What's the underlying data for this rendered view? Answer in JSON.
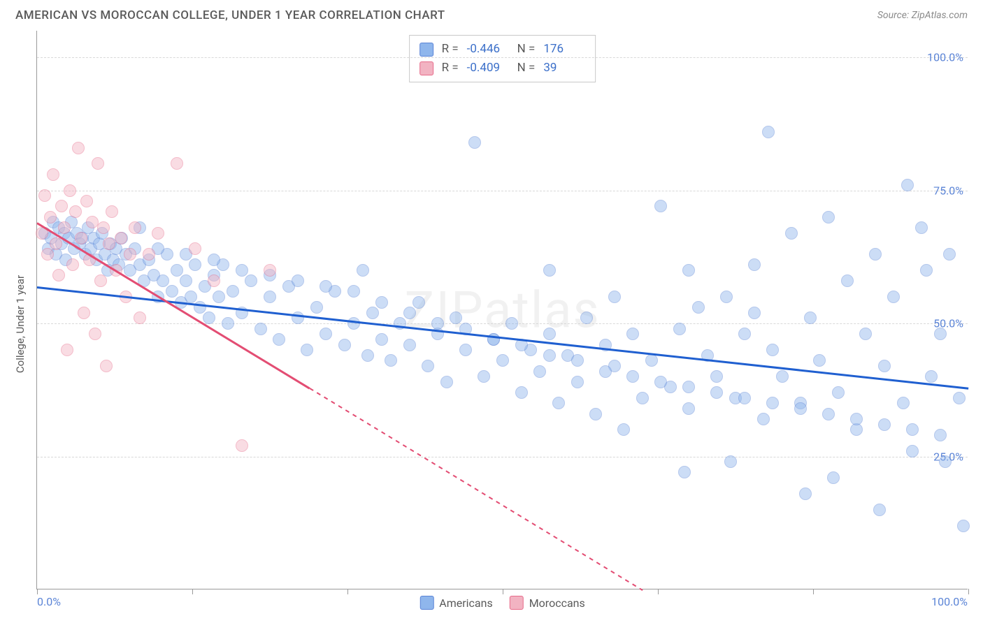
{
  "title": "AMERICAN VS MOROCCAN COLLEGE, UNDER 1 YEAR CORRELATION CHART",
  "source": "Source: ZipAtlas.com",
  "ylabel": "College, Under 1 year",
  "watermark": "ZIPatlas",
  "chart": {
    "type": "scatter",
    "background_color": "#ffffff",
    "grid_color": "#d8d8d8",
    "border_color": "#9a9a9a",
    "xlim": [
      0,
      100
    ],
    "ylim": [
      0,
      105
    ],
    "yticks": [
      25,
      50,
      75,
      100
    ],
    "ytick_labels": [
      "25.0%",
      "50.0%",
      "75.0%",
      "100.0%"
    ],
    "xticks": [
      0,
      16.67,
      33.33,
      50,
      66.67,
      83.33,
      100
    ],
    "x_start_label": "0.0%",
    "x_end_label": "100.0%",
    "marker_size": 18,
    "marker_opacity": 0.45,
    "axis_label_color": "#5b84d6",
    "axis_label_fontsize": 16
  },
  "series": [
    {
      "name": "Americans",
      "fill_color": "#8fb6ec",
      "stroke_color": "#5b84d6",
      "trend_color": "#1f5fd0",
      "R": "-0.446",
      "N": "176",
      "trend": {
        "x1": 0,
        "y1": 57,
        "x2": 100,
        "y2": 38
      },
      "points": [
        [
          0.8,
          67
        ],
        [
          1.2,
          64
        ],
        [
          1.5,
          66
        ],
        [
          1.7,
          69
        ],
        [
          2.0,
          63
        ],
        [
          2.3,
          68
        ],
        [
          2.6,
          65
        ],
        [
          2.9,
          67
        ],
        [
          3.1,
          62
        ],
        [
          3.4,
          66
        ],
        [
          3.7,
          69
        ],
        [
          4.0,
          64
        ],
        [
          4.3,
          67
        ],
        [
          4.6,
          65
        ],
        [
          4.9,
          66
        ],
        [
          5.2,
          63
        ],
        [
          5.5,
          68
        ],
        [
          5.8,
          64
        ],
        [
          6.1,
          66
        ],
        [
          6.4,
          62
        ],
        [
          6.7,
          65
        ],
        [
          7.0,
          67
        ],
        [
          7.3,
          63
        ],
        [
          7.6,
          60
        ],
        [
          7.9,
          65
        ],
        [
          8.2,
          62
        ],
        [
          8.5,
          64
        ],
        [
          8.8,
          61
        ],
        [
          9.1,
          66
        ],
        [
          9.5,
          63
        ],
        [
          10,
          60
        ],
        [
          10.5,
          64
        ],
        [
          11,
          61
        ],
        [
          11.5,
          58
        ],
        [
          12,
          62
        ],
        [
          12.5,
          59
        ],
        [
          13,
          55
        ],
        [
          13.5,
          58
        ],
        [
          14,
          63
        ],
        [
          14.5,
          56
        ],
        [
          15,
          60
        ],
        [
          15.5,
          54
        ],
        [
          16,
          58
        ],
        [
          16.5,
          55
        ],
        [
          17,
          61
        ],
        [
          17.5,
          53
        ],
        [
          18,
          57
        ],
        [
          18.5,
          51
        ],
        [
          19,
          59
        ],
        [
          19.5,
          55
        ],
        [
          20,
          61
        ],
        [
          20.5,
          50
        ],
        [
          21,
          56
        ],
        [
          22,
          52
        ],
        [
          23,
          58
        ],
        [
          24,
          49
        ],
        [
          25,
          55
        ],
        [
          26,
          47
        ],
        [
          27,
          57
        ],
        [
          28,
          51
        ],
        [
          29,
          45
        ],
        [
          30,
          53
        ],
        [
          31,
          48
        ],
        [
          32,
          56
        ],
        [
          33,
          46
        ],
        [
          34,
          50
        ],
        [
          35,
          60
        ],
        [
          35.5,
          44
        ],
        [
          36,
          52
        ],
        [
          37,
          47
        ],
        [
          38,
          43
        ],
        [
          39,
          50
        ],
        [
          40,
          46
        ],
        [
          41,
          54
        ],
        [
          42,
          42
        ],
        [
          43,
          48
        ],
        [
          44,
          39
        ],
        [
          45,
          51
        ],
        [
          46,
          45
        ],
        [
          47,
          84
        ],
        [
          48,
          40
        ],
        [
          49,
          47
        ],
        [
          50,
          43
        ],
        [
          51,
          50
        ],
        [
          52,
          37
        ],
        [
          53,
          45
        ],
        [
          54,
          41
        ],
        [
          55,
          48
        ],
        [
          56,
          35
        ],
        [
          57,
          44
        ],
        [
          58,
          39
        ],
        [
          59,
          51
        ],
        [
          60,
          33
        ],
        [
          61,
          46
        ],
        [
          62,
          42
        ],
        [
          63,
          30
        ],
        [
          64,
          48
        ],
        [
          65,
          36
        ],
        [
          66,
          43
        ],
        [
          67,
          72
        ],
        [
          68,
          38
        ],
        [
          69,
          49
        ],
        [
          69.5,
          22
        ],
        [
          70,
          34
        ],
        [
          71,
          53
        ],
        [
          72,
          44
        ],
        [
          73,
          40
        ],
        [
          74,
          55
        ],
        [
          74.5,
          24
        ],
        [
          75,
          36
        ],
        [
          76,
          48
        ],
        [
          77,
          61
        ],
        [
          78,
          32
        ],
        [
          78.5,
          86
        ],
        [
          79,
          45
        ],
        [
          80,
          40
        ],
        [
          81,
          67
        ],
        [
          82,
          35
        ],
        [
          82.5,
          18
        ],
        [
          83,
          51
        ],
        [
          84,
          43
        ],
        [
          85,
          70
        ],
        [
          85.5,
          21
        ],
        [
          86,
          37
        ],
        [
          87,
          58
        ],
        [
          88,
          30
        ],
        [
          89,
          48
        ],
        [
          90,
          63
        ],
        [
          90.5,
          15
        ],
        [
          91,
          42
        ],
        [
          92,
          55
        ],
        [
          93,
          35
        ],
        [
          93.5,
          76
        ],
        [
          94,
          26
        ],
        [
          95,
          68
        ],
        [
          95.5,
          60
        ],
        [
          96,
          40
        ],
        [
          97,
          48
        ],
        [
          97.5,
          24
        ],
        [
          98,
          63
        ],
        [
          99,
          36
        ],
        [
          99.5,
          12
        ],
        [
          11,
          68
        ],
        [
          13,
          64
        ],
        [
          16,
          63
        ],
        [
          19,
          62
        ],
        [
          22,
          60
        ],
        [
          25,
          59
        ],
        [
          28,
          58
        ],
        [
          31,
          57
        ],
        [
          34,
          56
        ],
        [
          37,
          54
        ],
        [
          40,
          52
        ],
        [
          43,
          50
        ],
        [
          46,
          49
        ],
        [
          49,
          47
        ],
        [
          52,
          46
        ],
        [
          55,
          44
        ],
        [
          58,
          43
        ],
        [
          61,
          41
        ],
        [
          64,
          40
        ],
        [
          67,
          39
        ],
        [
          70,
          38
        ],
        [
          73,
          37
        ],
        [
          76,
          36
        ],
        [
          79,
          35
        ],
        [
          82,
          34
        ],
        [
          85,
          33
        ],
        [
          88,
          32
        ],
        [
          91,
          31
        ],
        [
          94,
          30
        ],
        [
          97,
          29
        ],
        [
          55,
          60
        ],
        [
          62,
          55
        ],
        [
          70,
          60
        ],
        [
          77,
          52
        ]
      ]
    },
    {
      "name": "Moroccans",
      "fill_color": "#f2b3c2",
      "stroke_color": "#e76b8a",
      "trend_color": "#e34d73",
      "R": "-0.409",
      "N": "39",
      "trend": {
        "x1": 0,
        "y1": 69,
        "x2": 65,
        "y2": 0
      },
      "trend_solid_frac": 0.45,
      "points": [
        [
          0.5,
          67
        ],
        [
          0.8,
          74
        ],
        [
          1.1,
          63
        ],
        [
          1.4,
          70
        ],
        [
          1.7,
          78
        ],
        [
          2.0,
          65
        ],
        [
          2.3,
          59
        ],
        [
          2.6,
          72
        ],
        [
          2.9,
          68
        ],
        [
          3.2,
          45
        ],
        [
          3.5,
          75
        ],
        [
          3.8,
          61
        ],
        [
          4.1,
          71
        ],
        [
          4.4,
          83
        ],
        [
          4.7,
          66
        ],
        [
          5.0,
          52
        ],
        [
          5.3,
          73
        ],
        [
          5.6,
          62
        ],
        [
          5.9,
          69
        ],
        [
          6.2,
          48
        ],
        [
          6.5,
          80
        ],
        [
          6.8,
          58
        ],
        [
          7.1,
          68
        ],
        [
          7.4,
          42
        ],
        [
          7.7,
          65
        ],
        [
          8.0,
          71
        ],
        [
          8.5,
          60
        ],
        [
          9.0,
          66
        ],
        [
          9.5,
          55
        ],
        [
          10,
          63
        ],
        [
          10.5,
          68
        ],
        [
          11,
          51
        ],
        [
          12,
          63
        ],
        [
          13,
          67
        ],
        [
          15,
          80
        ],
        [
          17,
          64
        ],
        [
          19,
          58
        ],
        [
          22,
          27
        ],
        [
          25,
          60
        ]
      ]
    }
  ],
  "statbox": {
    "R_label": "R =",
    "N_label": "N ="
  },
  "legend": [
    {
      "label": "Americans",
      "fill": "#8fb6ec",
      "stroke": "#5b84d6"
    },
    {
      "label": "Moroccans",
      "fill": "#f2b3c2",
      "stroke": "#e76b8a"
    }
  ]
}
